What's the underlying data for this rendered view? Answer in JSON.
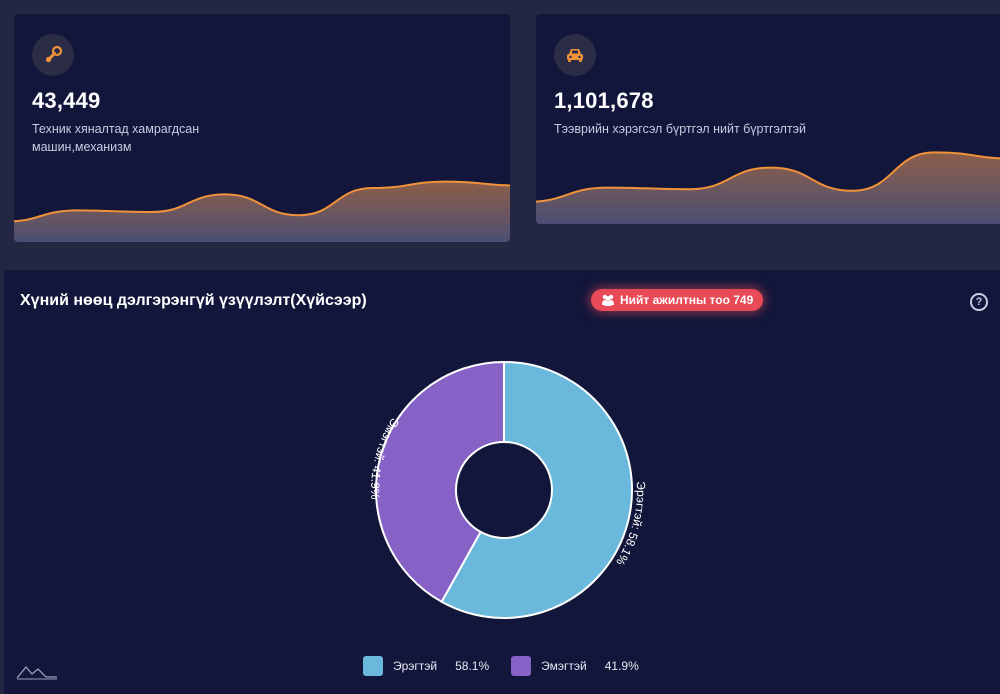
{
  "stats": [
    {
      "value": "43,449",
      "label": "Техник хяналтад хамрагдсан машин,механизм",
      "icon": "steam-icon",
      "trend": [
        0.18,
        0.32,
        0.3,
        0.52,
        0.26,
        0.6,
        0.68,
        0.63
      ]
    },
    {
      "value": "1,101,678",
      "label": "Тээврийн хэрэгсэл бүртгэл нийт бүртгэлтэй",
      "icon": "car-icon",
      "trend": [
        0.2,
        0.38,
        0.36,
        0.63,
        0.34,
        0.82,
        0.74
      ]
    }
  ],
  "panel": {
    "title": "Хүний нөөц дэлгэрэнгүй үзүүлэлт(Хүйсээр)",
    "badge_text": "Нийт ажилтны тоо 749",
    "help": "?"
  },
  "chart_data": {
    "type": "pie",
    "series": [
      {
        "name": "Эрэгтэй",
        "value": 58.1,
        "label": "Эрэгтэй: 58.1%",
        "pct_text": "58.1%",
        "color": "#6ab9dd"
      },
      {
        "name": "Эмэгтэй",
        "value": 41.9,
        "label": "Эмэгтэй: 41.9%",
        "pct_text": "41.9%",
        "color": "#8662c6"
      }
    ],
    "legend_position": "bottom"
  },
  "colors": {
    "background": "#232744",
    "card": "#12163a",
    "accent": "#f0923a",
    "badge": "#e94a57"
  }
}
